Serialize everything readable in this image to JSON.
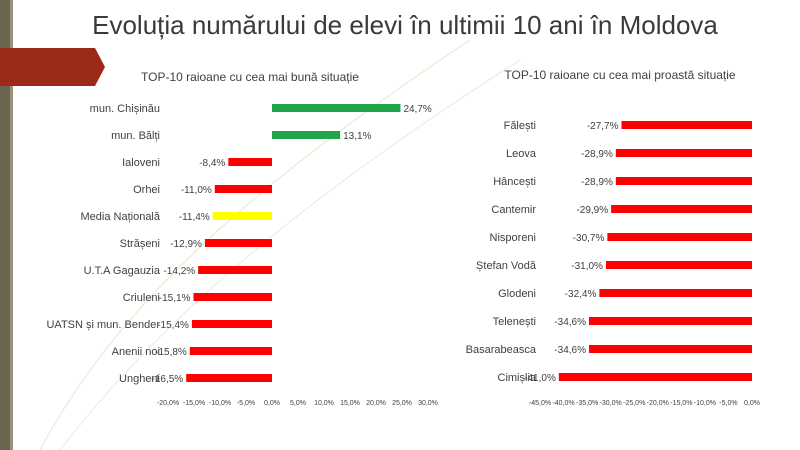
{
  "slide": {
    "title": "Evoluția numărului de elevi în ultimii 10 ani în Moldova"
  },
  "colors": {
    "accent_bar": "#9c2a18",
    "stripe_dark": "#6b6450",
    "stripe_light": "#9a9278",
    "positive": "#1fa64a",
    "negative": "#ff0000",
    "average": "#ffff00",
    "background_curve": "#e6edd4"
  },
  "chart_data": [
    {
      "type": "bar",
      "orientation": "horizontal",
      "title": "TOP-10 raioane cu cea mai bună situație",
      "categories": [
        "mun. Chișinău",
        "mun. Bălți",
        "Ialoveni",
        "Orhei",
        "Media Națională",
        "Strășeni",
        "U.T.A Gagauzia",
        "Criuleni",
        "UATSN și mun. Bender",
        "Anenii noi",
        "Ungheni"
      ],
      "values": [
        24.7,
        13.1,
        -8.4,
        -11.0,
        -11.4,
        -12.9,
        -14.2,
        -15.1,
        -15.4,
        -15.8,
        -16.5
      ],
      "value_labels": [
        "24,7%",
        "13,1%",
        "-8,4%",
        "-11,0%",
        "-11,4%",
        "-12,9%",
        "-14,2%",
        "-15,1%",
        "-15,4%",
        "-15,8%",
        "-16,5%"
      ],
      "xlim": [
        -20,
        30
      ],
      "tick_labels": [
        "-20,0%",
        "-15,0%",
        "-10,0%",
        "-5,0%",
        "0,0%",
        "5,0%",
        "10,0%",
        "15,0%",
        "20,0%",
        "25,0%",
        "30,0%"
      ],
      "xlabel": "",
      "ylabel": ""
    },
    {
      "type": "bar",
      "orientation": "horizontal",
      "title": "TOP-10 raioane cu cea mai proastă situație",
      "categories": [
        "Fălești",
        "Leova",
        "Hâncești",
        "Cantemir",
        "Nisporeni",
        "Ștefan Vodă",
        "Glodeni",
        "Telenești",
        "Basarabeasca",
        "Cimișlia"
      ],
      "values": [
        -27.7,
        -28.9,
        -28.9,
        -29.9,
        -30.7,
        -31.0,
        -32.4,
        -34.6,
        -34.6,
        -41.0
      ],
      "value_labels": [
        "-27,7%",
        "-28,9%",
        "-28,9%",
        "-29,9%",
        "-30,7%",
        "-31,0%",
        "-32,4%",
        "-34,6%",
        "-34,6%",
        "-41,0%"
      ],
      "xlim": [
        -45,
        0
      ],
      "tick_labels": [
        "-45,0%",
        "-40,0%",
        "-35,0%",
        "-30,0%",
        "-25,0%",
        "-20,0%",
        "-15,0%",
        "-10,0%",
        "-5,0%",
        "0,0%"
      ],
      "xlabel": "",
      "ylabel": ""
    }
  ]
}
